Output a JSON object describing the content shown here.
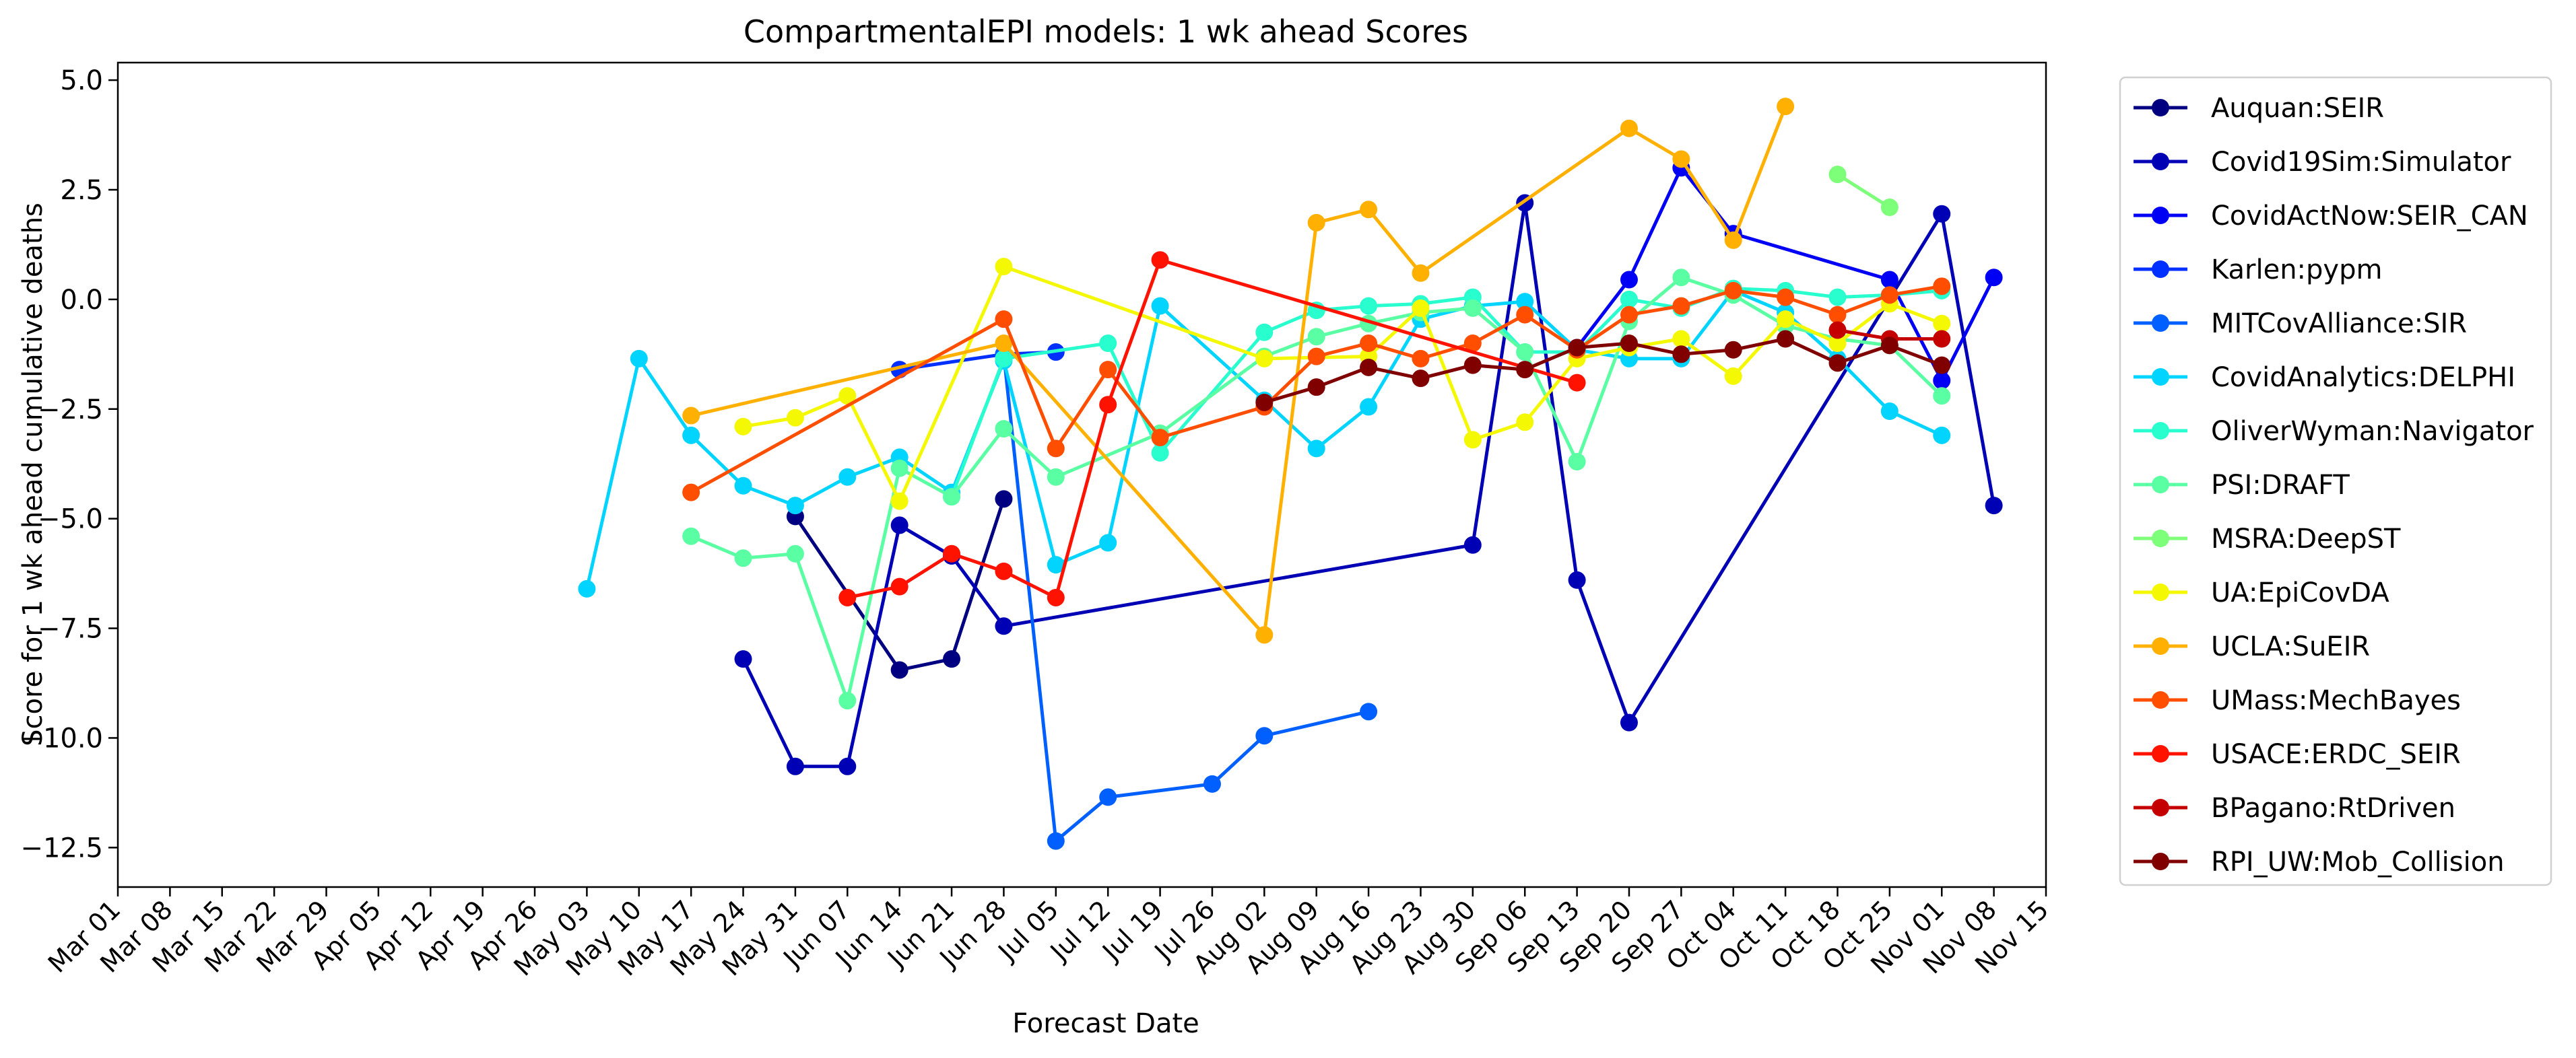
{
  "chart_data": {
    "type": "line",
    "title": "CompartmentalEPI models: 1 wk ahead Scores",
    "xlabel": "Forecast Date",
    "ylabel": "Score for 1 wk ahead cumulative deaths",
    "x_ticks": [
      "Mar 01",
      "Mar 08",
      "Mar 15",
      "Mar 22",
      "Mar 29",
      "Apr 05",
      "Apr 12",
      "Apr 19",
      "Apr 26",
      "May 03",
      "May 10",
      "May 17",
      "May 24",
      "May 31",
      "Jun 07",
      "Jun 14",
      "Jun 21",
      "Jun 28",
      "Jul 05",
      "Jul 12",
      "Jul 19",
      "Jul 26",
      "Aug 02",
      "Aug 09",
      "Aug 16",
      "Aug 23",
      "Aug 30",
      "Sep 06",
      "Sep 13",
      "Sep 20",
      "Sep 27",
      "Oct 04",
      "Oct 11",
      "Oct 18",
      "Oct 25",
      "Nov 01",
      "Nov 08",
      "Nov 15"
    ],
    "y_ticks": [
      "−12.5",
      "−10.0",
      "−7.5",
      "−5.0",
      "−2.5",
      "0.0",
      "2.5",
      "5.0"
    ],
    "y_tick_values": [
      -12.5,
      -10,
      -7.5,
      -5,
      -2.5,
      0,
      2.5,
      5
    ],
    "xlim": [
      "2020-03-01",
      "2020-11-15"
    ],
    "ylim": [
      -13.4,
      5.4
    ],
    "grid": false,
    "legend_position": "outside-right",
    "series": [
      {
        "name": "Auquan:SEIR",
        "color": "#000080",
        "points": [
          [
            "2020-05-31",
            -4.95
          ],
          [
            "2020-06-14",
            -8.45
          ],
          [
            "2020-06-21",
            -8.2
          ],
          [
            "2020-06-28",
            -4.55
          ]
        ]
      },
      {
        "name": "Covid19Sim:Simulator",
        "color": "#0000b4",
        "points": [
          [
            "2020-05-24",
            -8.2
          ],
          [
            "2020-05-31",
            -10.65
          ],
          [
            "2020-06-07",
            -10.65
          ],
          [
            "2020-06-14",
            -5.15
          ],
          [
            "2020-06-21",
            -5.85
          ],
          [
            "2020-06-28",
            -7.45
          ],
          [
            "2020-08-30",
            -5.6
          ],
          [
            "2020-09-06",
            2.2
          ],
          [
            "2020-09-13",
            -6.4
          ],
          [
            "2020-09-20",
            -9.65
          ],
          [
            "2020-11-01",
            1.95
          ],
          [
            "2020-11-08",
            -4.7
          ]
        ]
      },
      {
        "name": "CovidActNow:SEIR_CAN",
        "color": "#0000f4",
        "points": [
          [
            "2020-09-13",
            -1.1
          ],
          [
            "2020-09-20",
            0.45
          ],
          [
            "2020-09-27",
            3.0
          ],
          [
            "2020-10-04",
            1.5
          ],
          [
            "2020-10-25",
            0.45
          ],
          [
            "2020-11-01",
            -1.85
          ],
          [
            "2020-11-08",
            0.5
          ]
        ]
      },
      {
        "name": "Karlen:pypm",
        "color": "#0030ff",
        "points": [
          [
            "2020-06-14",
            -1.6
          ],
          [
            "2020-06-28",
            -1.25
          ],
          [
            "2020-07-05",
            -1.2
          ]
        ]
      },
      {
        "name": "MITCovAlliance:SIR",
        "color": "#0060ff",
        "points": [
          [
            "2020-06-28",
            -1.25
          ],
          [
            "2020-07-05",
            -12.35
          ],
          [
            "2020-07-12",
            -11.35
          ],
          [
            "2020-07-26",
            -11.05
          ],
          [
            "2020-08-02",
            -9.95
          ],
          [
            "2020-08-16",
            -9.4
          ]
        ]
      },
      {
        "name": "CovidAnalytics:DELPHI",
        "color": "#00d4ff",
        "points": [
          [
            "2020-05-03",
            -6.6
          ],
          [
            "2020-05-10",
            -1.35
          ],
          [
            "2020-05-17",
            -3.1
          ],
          [
            "2020-05-24",
            -4.25
          ],
          [
            "2020-05-31",
            -4.7
          ],
          [
            "2020-06-07",
            -4.05
          ],
          [
            "2020-06-14",
            -3.6
          ],
          [
            "2020-06-21",
            -4.4
          ],
          [
            "2020-06-28",
            -1.4
          ],
          [
            "2020-07-05",
            -6.05
          ],
          [
            "2020-07-12",
            -5.55
          ],
          [
            "2020-07-19",
            -0.15
          ],
          [
            "2020-08-02",
            -2.3
          ],
          [
            "2020-08-09",
            -3.4
          ],
          [
            "2020-08-16",
            -2.45
          ],
          [
            "2020-08-23",
            -0.45
          ],
          [
            "2020-08-30",
            -0.15
          ],
          [
            "2020-09-06",
            -0.05
          ],
          [
            "2020-09-13",
            -1.15
          ],
          [
            "2020-09-20",
            -1.35
          ],
          [
            "2020-09-27",
            -1.35
          ],
          [
            "2020-10-04",
            0.2
          ],
          [
            "2020-10-11",
            -0.3
          ],
          [
            "2020-10-18",
            -1.35
          ],
          [
            "2020-10-25",
            -2.55
          ],
          [
            "2020-11-01",
            -3.1
          ]
        ]
      },
      {
        "name": "OliverWyman:Navigator",
        "color": "#29ffce",
        "points": [
          [
            "2020-06-21",
            -4.5
          ],
          [
            "2020-06-28",
            -1.35
          ],
          [
            "2020-07-12",
            -1.0
          ],
          [
            "2020-07-19",
            -3.5
          ],
          [
            "2020-08-02",
            -0.75
          ],
          [
            "2020-08-09",
            -0.25
          ],
          [
            "2020-08-16",
            -0.15
          ],
          [
            "2020-08-23",
            -0.1
          ],
          [
            "2020-08-30",
            0.05
          ],
          [
            "2020-09-06",
            -1.2
          ],
          [
            "2020-09-13",
            -1.2
          ],
          [
            "2020-09-20",
            0.0
          ],
          [
            "2020-09-27",
            -0.2
          ],
          [
            "2020-10-04",
            0.25
          ],
          [
            "2020-10-11",
            0.2
          ],
          [
            "2020-10-18",
            0.05
          ],
          [
            "2020-10-25",
            0.1
          ],
          [
            "2020-11-01",
            0.2
          ]
        ]
      },
      {
        "name": "PSI:DRAFT",
        "color": "#5bffa3",
        "points": [
          [
            "2020-05-17",
            -5.4
          ],
          [
            "2020-05-24",
            -5.9
          ],
          [
            "2020-05-31",
            -5.8
          ],
          [
            "2020-06-07",
            -9.15
          ],
          [
            "2020-06-14",
            -3.85
          ],
          [
            "2020-06-21",
            -4.5
          ],
          [
            "2020-06-28",
            -2.95
          ],
          [
            "2020-07-05",
            -4.05
          ],
          [
            "2020-07-19",
            -3.05
          ],
          [
            "2020-08-02",
            -1.3
          ],
          [
            "2020-08-09",
            -0.85
          ],
          [
            "2020-08-16",
            -0.55
          ],
          [
            "2020-08-23",
            -0.3
          ],
          [
            "2020-08-30",
            -0.2
          ],
          [
            "2020-09-06",
            -1.2
          ],
          [
            "2020-09-13",
            -3.7
          ],
          [
            "2020-09-20",
            -0.5
          ],
          [
            "2020-09-27",
            0.5
          ],
          [
            "2020-10-04",
            0.1
          ],
          [
            "2020-10-11",
            -0.6
          ],
          [
            "2020-10-18",
            -0.9
          ],
          [
            "2020-10-25",
            -1.05
          ],
          [
            "2020-11-01",
            -2.2
          ]
        ]
      },
      {
        "name": "MSRA:DeepST",
        "color": "#7dff7a",
        "points": [
          [
            "2020-10-18",
            2.85
          ],
          [
            "2020-10-25",
            2.1
          ]
        ]
      },
      {
        "name": "UA:EpiCovDA",
        "color": "#f4f802",
        "points": [
          [
            "2020-05-24",
            -2.9
          ],
          [
            "2020-05-31",
            -2.7
          ],
          [
            "2020-06-07",
            -2.2
          ],
          [
            "2020-06-14",
            -4.6
          ],
          [
            "2020-06-28",
            0.75
          ],
          [
            "2020-08-02",
            -1.35
          ],
          [
            "2020-08-16",
            -1.3
          ],
          [
            "2020-08-23",
            -0.2
          ],
          [
            "2020-08-30",
            -3.2
          ],
          [
            "2020-09-06",
            -2.8
          ],
          [
            "2020-09-13",
            -1.35
          ],
          [
            "2020-09-20",
            -1.1
          ],
          [
            "2020-09-27",
            -0.9
          ],
          [
            "2020-10-04",
            -1.75
          ],
          [
            "2020-10-11",
            -0.45
          ],
          [
            "2020-10-18",
            -1.0
          ],
          [
            "2020-10-25",
            -0.1
          ],
          [
            "2020-11-01",
            -0.55
          ]
        ]
      },
      {
        "name": "UCLA:SuEIR",
        "color": "#ffb000",
        "points": [
          [
            "2020-05-17",
            -2.65
          ],
          [
            "2020-06-28",
            -1.0
          ],
          [
            "2020-08-02",
            -7.65
          ],
          [
            "2020-08-09",
            1.75
          ],
          [
            "2020-08-16",
            2.05
          ],
          [
            "2020-08-23",
            0.6
          ],
          [
            "2020-09-20",
            3.9
          ],
          [
            "2020-09-27",
            3.2
          ],
          [
            "2020-10-04",
            1.35
          ],
          [
            "2020-10-11",
            4.4
          ]
        ]
      },
      {
        "name": "UMass:MechBayes",
        "color": "#ff4e00",
        "points": [
          [
            "2020-05-17",
            -4.4
          ],
          [
            "2020-06-28",
            -0.45
          ],
          [
            "2020-07-05",
            -3.4
          ],
          [
            "2020-07-12",
            -1.6
          ],
          [
            "2020-07-19",
            -3.15
          ],
          [
            "2020-08-02",
            -2.45
          ],
          [
            "2020-08-09",
            -1.3
          ],
          [
            "2020-08-16",
            -1.0
          ],
          [
            "2020-08-23",
            -1.35
          ],
          [
            "2020-08-30",
            -1.0
          ],
          [
            "2020-09-06",
            -0.35
          ],
          [
            "2020-09-13",
            -1.15
          ],
          [
            "2020-09-20",
            -0.35
          ],
          [
            "2020-09-27",
            -0.15
          ],
          [
            "2020-10-04",
            0.2
          ],
          [
            "2020-10-11",
            0.05
          ],
          [
            "2020-10-18",
            -0.35
          ],
          [
            "2020-10-25",
            0.1
          ],
          [
            "2020-11-01",
            0.3
          ]
        ]
      },
      {
        "name": "USACE:ERDC_SEIR",
        "color": "#ff1300",
        "points": [
          [
            "2020-06-07",
            -6.8
          ],
          [
            "2020-06-14",
            -6.55
          ],
          [
            "2020-06-21",
            -5.8
          ],
          [
            "2020-06-28",
            -6.2
          ],
          [
            "2020-07-05",
            -6.8
          ],
          [
            "2020-07-12",
            -2.4
          ],
          [
            "2020-07-19",
            0.9
          ],
          [
            "2020-09-13",
            -1.9
          ]
        ]
      },
      {
        "name": "BPagano:RtDriven",
        "color": "#c40000",
        "points": [
          [
            "2020-10-18",
            -0.7
          ],
          [
            "2020-10-25",
            -0.9
          ],
          [
            "2020-11-01",
            -0.9
          ]
        ]
      },
      {
        "name": "RPI_UW:Mob_Collision",
        "color": "#800000",
        "points": [
          [
            "2020-08-02",
            -2.35
          ],
          [
            "2020-08-09",
            -2.0
          ],
          [
            "2020-08-16",
            -1.55
          ],
          [
            "2020-08-23",
            -1.8
          ],
          [
            "2020-08-30",
            -1.5
          ],
          [
            "2020-09-06",
            -1.6
          ],
          [
            "2020-09-13",
            -1.1
          ],
          [
            "2020-09-20",
            -1.0
          ],
          [
            "2020-09-27",
            -1.25
          ],
          [
            "2020-10-04",
            -1.15
          ],
          [
            "2020-10-11",
            -0.9
          ],
          [
            "2020-10-18",
            -1.45
          ],
          [
            "2020-10-25",
            -1.05
          ],
          [
            "2020-11-01",
            -1.5
          ]
        ]
      }
    ]
  }
}
